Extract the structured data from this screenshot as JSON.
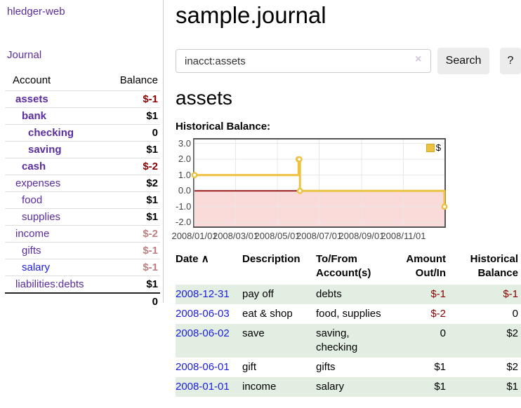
{
  "app": {
    "brand": "hledger-web",
    "nav_journal": "Journal"
  },
  "sidebar": {
    "header": {
      "account": "Account",
      "balance": "Balance"
    },
    "accounts": [
      {
        "name": "assets",
        "depth": 0,
        "bold": true,
        "balance": "$-1",
        "neg": "strong"
      },
      {
        "name": "bank",
        "depth": 1,
        "bold": true,
        "balance": "$1"
      },
      {
        "name": "checking",
        "depth": 2,
        "bold": true,
        "balance": "0"
      },
      {
        "name": "saving",
        "depth": 2,
        "bold": true,
        "balance": "$1"
      },
      {
        "name": "cash",
        "depth": 1,
        "bold": true,
        "balance": "$-2",
        "neg": "strong"
      },
      {
        "name": "expenses",
        "depth": 0,
        "bold": false,
        "balance": "$2"
      },
      {
        "name": "food",
        "depth": 1,
        "bold": false,
        "balance": "$1"
      },
      {
        "name": "supplies",
        "depth": 1,
        "bold": false,
        "balance": "$1"
      },
      {
        "name": "income",
        "depth": 0,
        "bold": false,
        "balance": "$-2",
        "neg": "soft"
      },
      {
        "name": "gifts",
        "depth": 1,
        "bold": false,
        "balance": "$-1",
        "neg": "soft"
      },
      {
        "name": "salary",
        "depth": 1,
        "bold": false,
        "balance": "$-1",
        "neg": "soft",
        "link_color": "blue"
      },
      {
        "name": "liabilities:debts",
        "depth": 0,
        "bold": false,
        "balance": "$1"
      }
    ],
    "total": "0"
  },
  "header": {
    "title": "sample.journal"
  },
  "search": {
    "value": "inacct:assets",
    "clear_icon": "×",
    "button": "Search",
    "help_button": "?"
  },
  "account_page": {
    "heading": "assets",
    "chart_label": "Historical Balance:"
  },
  "chart_data": {
    "type": "line",
    "step": true,
    "title": "Historical Balance of assets",
    "series": [
      {
        "name": "$",
        "color": "#EDC240",
        "points": [
          [
            "2008-01-01",
            1
          ],
          [
            "2008-06-01",
            2
          ],
          [
            "2008-06-02",
            2
          ],
          [
            "2008-06-03",
            0
          ],
          [
            "2008-12-31",
            -1
          ]
        ]
      }
    ],
    "x_range": [
      "2008-01-01",
      "2008-12-31"
    ],
    "ylim": [
      -2.25,
      3.25
    ],
    "y_ticks": [
      3.0,
      2.0,
      1.0,
      0.0,
      -1.0,
      -2.0
    ],
    "y_tick_labels": [
      "3.0",
      "2.0",
      "1.0",
      "0.0",
      "-1.0",
      "-2.0"
    ],
    "x_ticks": [
      "2008-01-01",
      "2008-03-01",
      "2008-05-01",
      "2008-07-01",
      "2008-09-01",
      "2008-11-01"
    ],
    "x_tick_labels": [
      "2008/01/01",
      "2008/03/01",
      "2008/05/01",
      "2008/07/01",
      "2008/09/01",
      "2008/11/01"
    ],
    "grid": true,
    "negative_region_fill": "#fbdada",
    "zero_line_color": "#8b0000",
    "legend": {
      "label": "$",
      "position": "top-right"
    }
  },
  "register": {
    "sort_indicator": "∧",
    "columns": [
      "Date",
      "Description",
      "To/From Account(s)",
      "Amount Out/In",
      "Historical Balance"
    ],
    "rows": [
      {
        "date": "2008-12-31",
        "description": "pay off",
        "accounts": "debts",
        "amount": "$-1",
        "balance": "$-1"
      },
      {
        "date": "2008-06-03",
        "description": "eat & shop",
        "accounts": "food, supplies",
        "amount": "$-2",
        "balance": "0"
      },
      {
        "date": "2008-06-02",
        "description": "save",
        "accounts": "saving, checking",
        "amount": "0",
        "balance": "$2"
      },
      {
        "date": "2008-06-01",
        "description": "gift",
        "accounts": "gifts",
        "amount": "$1",
        "balance": "$2"
      },
      {
        "date": "2008-01-01",
        "description": "income",
        "accounts": "salary",
        "amount": "$1",
        "balance": "$1"
      }
    ]
  }
}
